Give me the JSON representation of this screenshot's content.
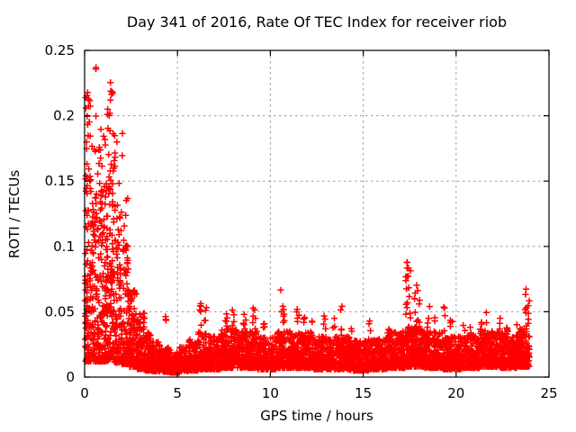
{
  "chart_data": {
    "type": "scatter",
    "title": "Day 341 of 2016, Rate Of TEC Index for receiver riob",
    "xlabel": "GPS time / hours",
    "ylabel": "ROTI / TECUs",
    "xlim": [
      0,
      25
    ],
    "ylim": [
      0,
      0.25
    ],
    "xticks": [
      0,
      5,
      10,
      15,
      20,
      25
    ],
    "xtick_labels": [
      "0",
      "5",
      "10",
      "15",
      "20",
      "25"
    ],
    "yticks": [
      0,
      0.05,
      0.1,
      0.15,
      0.2,
      0.25
    ],
    "ytick_labels": [
      "0",
      "0.05",
      "0.1",
      "0.15",
      "0.2",
      "0.25"
    ],
    "grid": true,
    "legend": false,
    "marker": "plus",
    "marker_color": "#ff0000",
    "grid_color": "#9b9b9b",
    "border_color": "#000000",
    "background": "#ffffff",
    "summary": "Dense red '+' scatter of ROTI vs GPS time. Strong activity 0-2.5 h with values up to ~0.237 TECU (clusters near 0.21-0.23 at 0-0.35 h and 1.35-1.5 h); quiet band ~0.005-0.04 TECU for rest of day with intermittent spikes ~0.05-0.07, an isolated spike column to ~0.102 near 17.3 h, and a burst to ~0.068 near 23.8 h; data end ~23.95 h.",
    "seed": 341,
    "bands": [
      [
        0.02,
        0.4,
        110,
        0.012,
        0.155,
        2.0
      ],
      [
        0.4,
        0.8,
        105,
        0.012,
        0.145,
        2.0
      ],
      [
        0.8,
        1.2,
        110,
        0.012,
        0.155,
        2.0
      ],
      [
        1.2,
        1.6,
        110,
        0.012,
        0.16,
        1.9
      ],
      [
        1.6,
        2.0,
        105,
        0.011,
        0.135,
        2.0
      ],
      [
        2.0,
        2.4,
        95,
        0.01,
        0.105,
        2.1
      ],
      [
        2.4,
        2.8,
        90,
        0.008,
        0.068,
        2.0
      ],
      [
        2.8,
        3.2,
        90,
        0.006,
        0.048,
        2.0
      ],
      [
        3.2,
        3.6,
        90,
        0.005,
        0.034,
        1.9
      ],
      [
        3.6,
        4.1,
        100,
        0.0045,
        0.027,
        1.9
      ],
      [
        4.1,
        4.6,
        100,
        0.004,
        0.023,
        1.9
      ],
      [
        4.6,
        5.1,
        100,
        0.0035,
        0.019,
        1.8
      ],
      [
        5.1,
        5.6,
        100,
        0.0045,
        0.023,
        1.8
      ],
      [
        5.6,
        6.1,
        100,
        0.005,
        0.029,
        1.8
      ],
      [
        6.1,
        6.7,
        115,
        0.006,
        0.035,
        1.8
      ],
      [
        6.7,
        7.3,
        115,
        0.006,
        0.031,
        1.8
      ],
      [
        7.3,
        8.3,
        195,
        0.007,
        0.037,
        1.8
      ],
      [
        8.3,
        9.3,
        195,
        0.007,
        0.035,
        1.8
      ],
      [
        9.3,
        10.3,
        195,
        0.006,
        0.031,
        1.8
      ],
      [
        10.3,
        11.3,
        195,
        0.007,
        0.035,
        1.8
      ],
      [
        11.3,
        12.3,
        195,
        0.007,
        0.034,
        1.8
      ],
      [
        12.3,
        13.3,
        195,
        0.006,
        0.032,
        1.8
      ],
      [
        13.3,
        14.3,
        195,
        0.006,
        0.031,
        1.8
      ],
      [
        14.3,
        15.3,
        195,
        0.005,
        0.028,
        1.8
      ],
      [
        15.3,
        16.3,
        195,
        0.006,
        0.03,
        1.8
      ],
      [
        16.3,
        17.3,
        195,
        0.007,
        0.035,
        1.8
      ],
      [
        17.3,
        18.3,
        195,
        0.008,
        0.039,
        1.8
      ],
      [
        18.3,
        19.3,
        195,
        0.007,
        0.035,
        1.8
      ],
      [
        19.3,
        20.3,
        195,
        0.006,
        0.031,
        1.8
      ],
      [
        20.3,
        21.3,
        195,
        0.007,
        0.032,
        1.8
      ],
      [
        21.3,
        22.3,
        195,
        0.008,
        0.035,
        1.8
      ],
      [
        22.3,
        23.3,
        195,
        0.007,
        0.034,
        1.8
      ],
      [
        23.3,
        23.95,
        130,
        0.008,
        0.037,
        1.8
      ]
    ],
    "clusters": [
      [
        0.02,
        0.35,
        8,
        0.205,
        0.224
      ],
      [
        0.52,
        0.62,
        2,
        0.232,
        0.238
      ],
      [
        1.35,
        1.52,
        6,
        0.21,
        0.229
      ],
      [
        0.02,
        0.4,
        12,
        0.15,
        0.205
      ],
      [
        0.45,
        0.85,
        7,
        0.15,
        0.202
      ],
      [
        0.85,
        1.25,
        9,
        0.15,
        0.205
      ],
      [
        1.25,
        1.6,
        10,
        0.15,
        0.21
      ],
      [
        1.6,
        2.05,
        8,
        0.135,
        0.19
      ],
      [
        2.05,
        2.4,
        6,
        0.1,
        0.138
      ],
      [
        2.28,
        2.36,
        4,
        0.075,
        0.106
      ],
      [
        2.65,
        2.75,
        3,
        0.035,
        0.05
      ],
      [
        2.95,
        3.05,
        3,
        0.032,
        0.048
      ],
      [
        3.15,
        3.25,
        3,
        0.034,
        0.05
      ],
      [
        4.35,
        4.45,
        3,
        0.028,
        0.05
      ],
      [
        6.15,
        6.3,
        6,
        0.035,
        0.058
      ],
      [
        6.45,
        6.6,
        5,
        0.032,
        0.055
      ],
      [
        7.55,
        7.7,
        5,
        0.035,
        0.05
      ],
      [
        7.95,
        8.1,
        5,
        0.035,
        0.052
      ],
      [
        8.55,
        8.7,
        5,
        0.035,
        0.056
      ],
      [
        9.05,
        9.2,
        6,
        0.035,
        0.058
      ],
      [
        9.55,
        9.7,
        4,
        0.03,
        0.046
      ],
      [
        10.55,
        10.75,
        8,
        0.035,
        0.068
      ],
      [
        11.4,
        11.55,
        6,
        0.032,
        0.058
      ],
      [
        11.75,
        11.9,
        4,
        0.03,
        0.05
      ],
      [
        12.15,
        12.3,
        4,
        0.03,
        0.05
      ],
      [
        12.85,
        13.0,
        4,
        0.03,
        0.048
      ],
      [
        13.35,
        13.5,
        4,
        0.028,
        0.045
      ],
      [
        13.75,
        13.9,
        5,
        0.032,
        0.062
      ],
      [
        14.35,
        14.5,
        3,
        0.025,
        0.04
      ],
      [
        15.25,
        15.4,
        4,
        0.026,
        0.044
      ],
      [
        16.35,
        16.5,
        5,
        0.03,
        0.05
      ],
      [
        17.28,
        17.38,
        11,
        0.04,
        0.102
      ],
      [
        17.42,
        17.55,
        7,
        0.035,
        0.088
      ],
      [
        17.75,
        17.95,
        8,
        0.035,
        0.08
      ],
      [
        18.0,
        18.15,
        5,
        0.032,
        0.068
      ],
      [
        18.45,
        18.6,
        5,
        0.03,
        0.06
      ],
      [
        18.75,
        18.9,
        4,
        0.028,
        0.05
      ],
      [
        19.25,
        19.4,
        5,
        0.03,
        0.055
      ],
      [
        19.65,
        19.8,
        4,
        0.028,
        0.045
      ],
      [
        20.35,
        20.5,
        3,
        0.026,
        0.042
      ],
      [
        20.75,
        20.9,
        4,
        0.028,
        0.045
      ],
      [
        21.25,
        21.4,
        5,
        0.03,
        0.056
      ],
      [
        21.55,
        21.7,
        4,
        0.028,
        0.05
      ],
      [
        22.25,
        22.4,
        4,
        0.028,
        0.05
      ],
      [
        22.65,
        22.8,
        4,
        0.026,
        0.044
      ],
      [
        23.25,
        23.4,
        4,
        0.028,
        0.046
      ],
      [
        23.7,
        23.82,
        7,
        0.032,
        0.068
      ],
      [
        23.84,
        23.94,
        5,
        0.03,
        0.06
      ]
    ]
  }
}
